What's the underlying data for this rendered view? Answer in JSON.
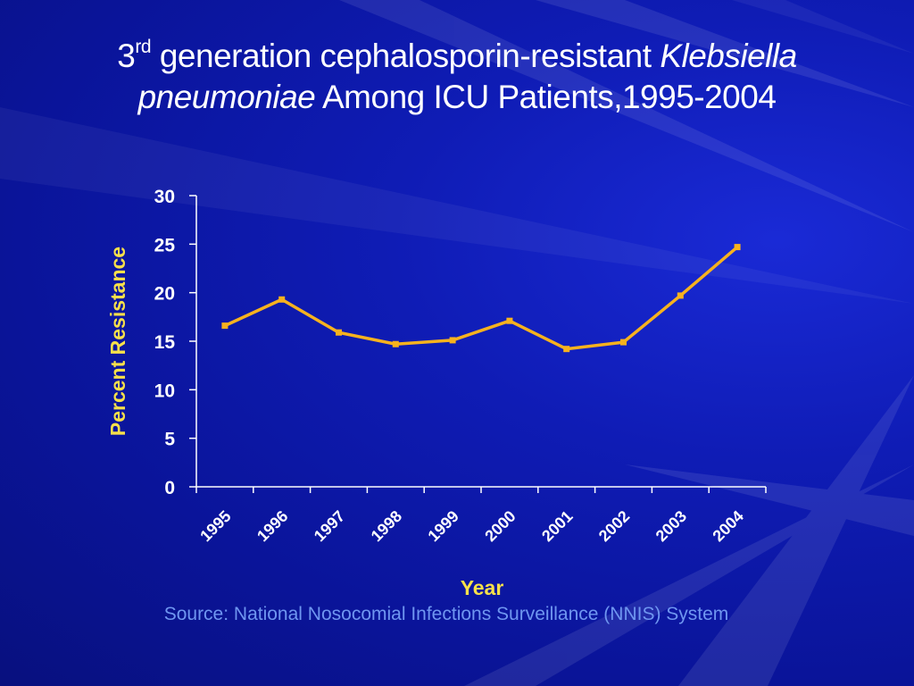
{
  "title": {
    "num": "3",
    "sup": "rd",
    "part1": " generation cephalosporin-resistant ",
    "italic1": "Klebsiella",
    "italic2": "pneumoniae",
    "part2": " Among ICU Patients,1995-2004"
  },
  "source": "Source: National Nosocomial Infections Surveillance (NNIS) System",
  "colors": {
    "line": "#f7b21e",
    "axis_label": "#f7e04a",
    "tick_text": "#ffffff",
    "axis": "#ffffff",
    "source": "#6f96f0"
  },
  "chart_data": {
    "type": "line",
    "categories": [
      "1995",
      "1996",
      "1997",
      "1998",
      "1999",
      "2000",
      "2001",
      "2002",
      "2003",
      "2004"
    ],
    "series": [
      {
        "values": [
          16.6,
          19.3,
          15.9,
          14.7,
          15.1,
          17.1,
          14.2,
          14.9,
          19.7,
          24.7
        ]
      }
    ],
    "xlabel": "Year",
    "ylabel": "Percent Resistance",
    "ylim": [
      0,
      30
    ],
    "yticks": [
      "0",
      "5",
      "10",
      "15",
      "20",
      "25",
      "30"
    ],
    "grid": false,
    "legend": "none"
  }
}
